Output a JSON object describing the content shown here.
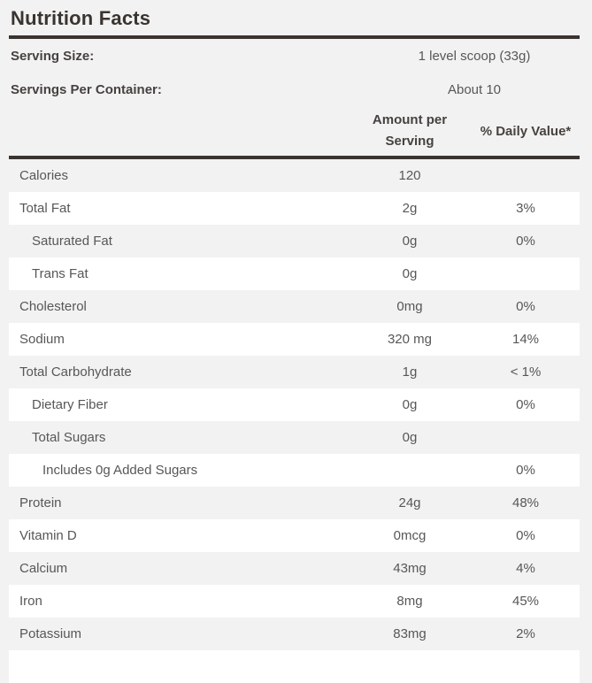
{
  "label": {
    "title": "Nutrition Facts",
    "serving_info": [
      {
        "label": "Serving Size:",
        "value": "1 level scoop (33g)"
      },
      {
        "label": "Servings Per Container:",
        "value": "About 10"
      }
    ],
    "columns": {
      "amount": "Amount per Serving",
      "daily_value": "% Daily Value*"
    },
    "rows": [
      {
        "name": "Calories",
        "amount": "120",
        "dv": "",
        "indent": 0
      },
      {
        "name": "Total Fat",
        "amount": "2g",
        "dv": "3%",
        "indent": 0
      },
      {
        "name": "Saturated Fat",
        "amount": "0g",
        "dv": "0%",
        "indent": 1
      },
      {
        "name": "Trans Fat",
        "amount": "0g",
        "dv": "",
        "indent": 1
      },
      {
        "name": "Cholesterol",
        "amount": "0mg",
        "dv": "0%",
        "indent": 0
      },
      {
        "name": "Sodium",
        "amount": "320 mg",
        "dv": "14%",
        "indent": 0
      },
      {
        "name": "Total Carbohydrate",
        "amount": "1g",
        "dv": "< 1%",
        "indent": 0
      },
      {
        "name": "Dietary Fiber",
        "amount": "0g",
        "dv": "0%",
        "indent": 1
      },
      {
        "name": "Total Sugars",
        "amount": "0g",
        "dv": "",
        "indent": 1
      },
      {
        "name": "Includes 0g Added Sugars",
        "amount": "",
        "dv": "0%",
        "indent": 2
      },
      {
        "name": "Protein",
        "amount": "24g",
        "dv": "48%",
        "indent": 0
      },
      {
        "name": "Vitamin D",
        "amount": "0mcg",
        "dv": "0%",
        "indent": 0
      },
      {
        "name": "Calcium",
        "amount": "43mg",
        "dv": "4%",
        "indent": 0
      },
      {
        "name": "Iron",
        "amount": "8mg",
        "dv": "45%",
        "indent": 0
      },
      {
        "name": "Potassium",
        "amount": "83mg",
        "dv": "2%",
        "indent": 0
      }
    ],
    "colors": {
      "background": "#f2f2f2",
      "row_alternate": "#ffffff",
      "rule_dark": "#3a3431",
      "title_text": "#352f2d",
      "heading_text": "#47413f",
      "body_text": "#575757"
    }
  }
}
